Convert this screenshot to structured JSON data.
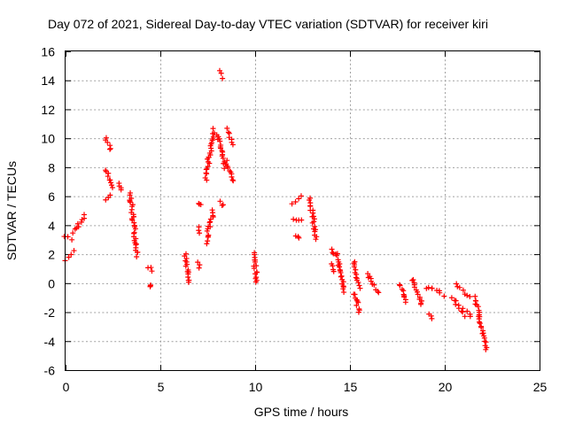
{
  "chart_data": {
    "type": "scatter",
    "title": "Day 072 of 2021, Sidereal Day-to-day VTEC variation (SDTVAR) for receiver kiri",
    "xlabel": "GPS time / hours",
    "ylabel": "SDTVAR / TECUs",
    "xlim": [
      0,
      25
    ],
    "ylim": [
      -6,
      16
    ],
    "xticks": [
      "0",
      "5",
      "10",
      "15",
      "20",
      "25"
    ],
    "yticks": [
      "-6",
      "-4",
      "-2",
      "0",
      "2",
      "4",
      "6",
      "8",
      "10",
      "12",
      "14",
      "16"
    ],
    "grid": true,
    "marker": "+",
    "color": "#ff0000",
    "segments": [
      {
        "x": [
          0.0,
          0.3
        ],
        "y": [
          3.3,
          3.0
        ]
      },
      {
        "x": [
          0.0,
          0.4
        ],
        "y": [
          1.6,
          2.2
        ]
      },
      {
        "x": [
          0.4,
          1.0
        ],
        "y": [
          3.5,
          4.7
        ]
      },
      {
        "x": [
          2.1,
          2.4
        ],
        "y": [
          10.0,
          9.2
        ]
      },
      {
        "x": [
          2.1,
          2.5
        ],
        "y": [
          7.8,
          6.6
        ]
      },
      {
        "x": [
          2.1,
          2.3
        ],
        "y": [
          5.7,
          6.1
        ]
      },
      {
        "x": [
          2.8,
          2.9
        ],
        "y": [
          6.9,
          6.4
        ]
      },
      {
        "x": [
          3.4,
          3.8
        ],
        "y": [
          6.2,
          1.9
        ]
      },
      {
        "x": [
          4.4,
          4.5
        ],
        "y": [
          1.1,
          0.9
        ]
      },
      {
        "x": [
          4.4,
          4.5
        ],
        "y": [
          -0.1,
          -0.2
        ]
      },
      {
        "x": [
          6.3,
          6.5
        ],
        "y": [
          2.0,
          0.0
        ]
      },
      {
        "x": [
          7.0,
          7.1
        ],
        "y": [
          5.5,
          5.4
        ]
      },
      {
        "x": [
          7.0,
          7.1
        ],
        "y": [
          3.8,
          3.5
        ]
      },
      {
        "x": [
          7.0,
          7.1
        ],
        "y": [
          1.4,
          1.1
        ]
      },
      {
        "x": [
          7.4,
          7.8
        ],
        "y": [
          2.8,
          5.0
        ]
      },
      {
        "x": [
          7.4,
          7.8
        ],
        "y": [
          7.2,
          10.6
        ]
      },
      {
        "x": [
          8.0,
          8.4
        ],
        "y": [
          10.3,
          8.0
        ]
      },
      {
        "x": [
          8.2,
          8.25
        ],
        "y": [
          14.6,
          14.2
        ]
      },
      {
        "x": [
          8.2,
          8.3
        ],
        "y": [
          5.6,
          5.3
        ]
      },
      {
        "x": [
          8.5,
          8.8
        ],
        "y": [
          10.6,
          9.6
        ]
      },
      {
        "x": [
          8.5,
          8.8
        ],
        "y": [
          8.4,
          7.0
        ]
      },
      {
        "x": [
          9.9,
          10.1
        ],
        "y": [
          2.1,
          0.0
        ]
      },
      {
        "x": [
          12.0,
          12.4
        ],
        "y": [
          5.5,
          6.0
        ]
      },
      {
        "x": [
          12.0,
          12.4
        ],
        "y": [
          4.5,
          4.3
        ]
      },
      {
        "x": [
          12.2,
          12.3
        ],
        "y": [
          3.3,
          3.1
        ]
      },
      {
        "x": [
          12.9,
          13.2
        ],
        "y": [
          5.8,
          3.1
        ]
      },
      {
        "x": [
          14.0,
          14.1
        ],
        "y": [
          2.4,
          2.0
        ]
      },
      {
        "x": [
          14.0,
          14.1
        ],
        "y": [
          1.3,
          0.8
        ]
      },
      {
        "x": [
          14.3,
          14.7
        ],
        "y": [
          2.1,
          -0.6
        ]
      },
      {
        "x": [
          15.2,
          15.5
        ],
        "y": [
          1.5,
          -0.3
        ]
      },
      {
        "x": [
          15.2,
          15.5
        ],
        "y": [
          -0.7,
          -2.0
        ]
      },
      {
        "x": [
          15.9,
          16.1
        ],
        "y": [
          0.6,
          0.4
        ]
      },
      {
        "x": [
          16.0,
          16.5
        ],
        "y": [
          0.3,
          -0.7
        ]
      },
      {
        "x": [
          17.6,
          18.0
        ],
        "y": [
          -0.1,
          -1.3
        ]
      },
      {
        "x": [
          18.3,
          18.8
        ],
        "y": [
          0.3,
          -1.5
        ]
      },
      {
        "x": [
          19.1,
          19.3
        ],
        "y": [
          -0.3,
          -0.4
        ]
      },
      {
        "x": [
          19.2,
          19.3
        ],
        "y": [
          -2.2,
          -2.4
        ]
      },
      {
        "x": [
          19.4,
          19.9
        ],
        "y": [
          -0.3,
          -0.9
        ]
      },
      {
        "x": [
          20.4,
          21.0
        ],
        "y": [
          -1.0,
          -2.2
        ]
      },
      {
        "x": [
          20.6,
          21.3
        ],
        "y": [
          0.0,
          -1.0
        ]
      },
      {
        "x": [
          21.0,
          21.4
        ],
        "y": [
          -1.8,
          -2.3
        ]
      },
      {
        "x": [
          21.6,
          22.2
        ],
        "y": [
          -1.0,
          -4.5
        ]
      }
    ]
  }
}
